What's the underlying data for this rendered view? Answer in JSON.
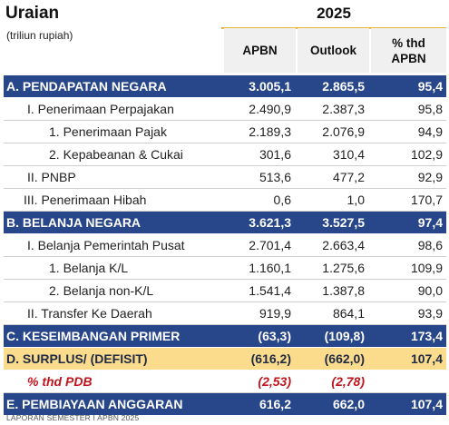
{
  "header": {
    "title": "Uraian",
    "subtitle": "(triliun rupiah)",
    "year": "2025",
    "columns": [
      "APBN",
      "Outlook",
      "% thd\nAPBN"
    ]
  },
  "colors": {
    "section_blue": "#28478a",
    "highlight_gold": "#fbdc8c",
    "year_rule": "#e8b73c",
    "pdb_red": "#c0151c"
  },
  "rows": [
    {
      "label": "A.  PENDAPATAN NEGARA",
      "apbn": "3.005,1",
      "outlook": "2.865,5",
      "pct": "95,4"
    },
    {
      "label": "I. Penerimaan Perpajakan",
      "apbn": "2.490,9",
      "outlook": "2.387,3",
      "pct": "95,8"
    },
    {
      "label": "1.  Penerimaan Pajak",
      "apbn": "2.189,3",
      "outlook": "2.076,9",
      "pct": "94,9"
    },
    {
      "label": "2.  Kepabeanan & Cukai",
      "apbn": "301,6",
      "outlook": "310,4",
      "pct": "102,9"
    },
    {
      "label": "II. PNBP",
      "apbn": "513,6",
      "outlook": "477,2",
      "pct": "92,9"
    },
    {
      "label": "III. Penerimaan Hibah",
      "apbn": "0,6",
      "outlook": "1,0",
      "pct": "170,7"
    },
    {
      "label": "B.  BELANJA NEGARA",
      "apbn": "3.621,3",
      "outlook": "3.527,5",
      "pct": "97,4"
    },
    {
      "label": "I. Belanja Pemerintah Pusat",
      "apbn": "2.701,4",
      "outlook": "2.663,4",
      "pct": "98,6"
    },
    {
      "label": "1.  Belanja K/L",
      "apbn": "1.160,1",
      "outlook": "1.275,6",
      "pct": "109,9"
    },
    {
      "label": "2.  Belanja non-K/L",
      "apbn": "1.541,4",
      "outlook": "1.387,8",
      "pct": "90,0"
    },
    {
      "label": "II. Transfer Ke Daerah",
      "apbn": "919,9",
      "outlook": "864,1",
      "pct": "93,9"
    },
    {
      "label": "C.  KESEIMBANGAN PRIMER",
      "apbn": "(63,3)",
      "outlook": "(109,8)",
      "pct": "173,4"
    },
    {
      "label": "D.  SURPLUS/ (DEFISIT)",
      "apbn": "(616,2)",
      "outlook": "(662,0)",
      "pct": "107,4"
    },
    {
      "label": "% thd PDB",
      "apbn": "(2,53)",
      "outlook": "(2,78)",
      "pct": ""
    },
    {
      "label": "E.  PEMBIAYAAN ANGGARAN",
      "apbn": "616,2",
      "outlook": "662,0",
      "pct": "107,4"
    }
  ],
  "footer": "LAPORAN SEMESTER I APBN 2025"
}
